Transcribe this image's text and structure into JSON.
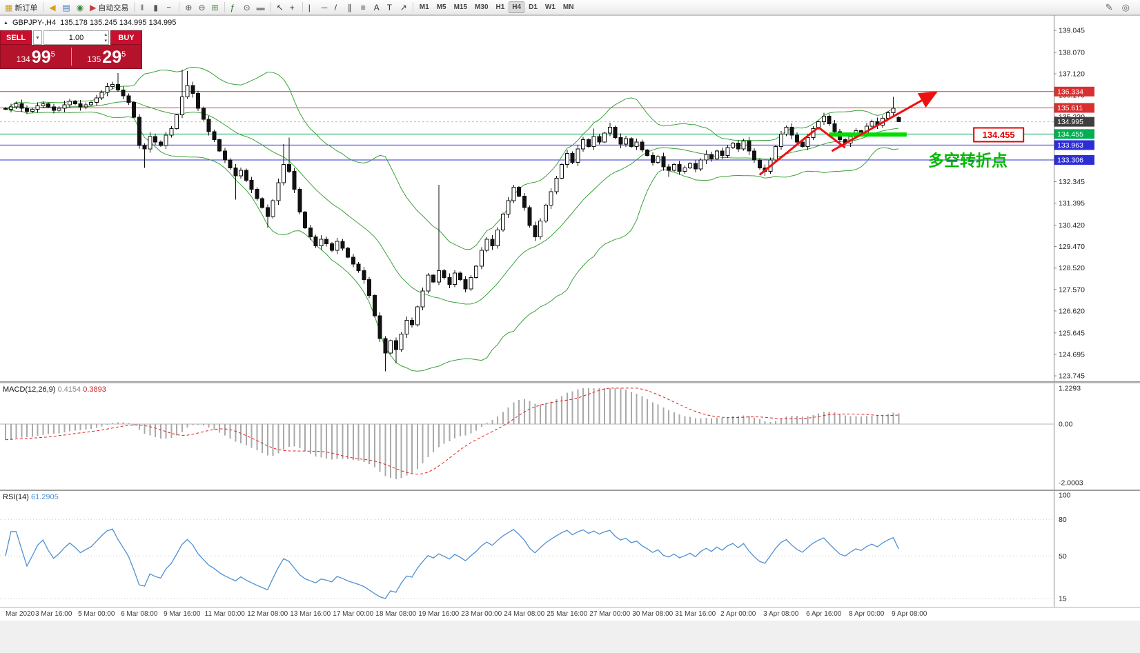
{
  "toolbar": {
    "items": [
      {
        "type": "button",
        "name": "new-order-button",
        "glyph": "▦",
        "color": "#caa02c",
        "label": "新订单"
      },
      {
        "type": "sep"
      },
      {
        "type": "button",
        "name": "alerts-icon",
        "glyph": "◀",
        "color": "#d4a017"
      },
      {
        "type": "button",
        "name": "profiles-icon",
        "glyph": "▤",
        "color": "#4b7bb5"
      },
      {
        "type": "button",
        "name": "support-icon",
        "glyph": "◉",
        "color": "#3a8a3a"
      },
      {
        "type": "button",
        "name": "auto-trading-button",
        "glyph": "▶",
        "color": "#c23b3b",
        "label": "自动交易"
      },
      {
        "type": "sep"
      },
      {
        "type": "button",
        "name": "chart-bars-icon",
        "glyph": "‖",
        "color": "#555555"
      },
      {
        "type": "button",
        "name": "chart-candles-icon",
        "glyph": "▮",
        "color": "#555555"
      },
      {
        "type": "button",
        "name": "chart-line-icon",
        "glyph": "~",
        "color": "#555555"
      },
      {
        "type": "sep"
      },
      {
        "type": "button",
        "name": "zoom-in-button",
        "glyph": "⊕",
        "color": "#555555"
      },
      {
        "type": "button",
        "name": "zoom-out-button",
        "glyph": "⊖",
        "color": "#555555"
      },
      {
        "type": "button",
        "name": "tile-windows-icon",
        "glyph": "⊞",
        "color": "#3a8a3a"
      },
      {
        "type": "sep"
      },
      {
        "type": "button",
        "name": "indicators-button",
        "glyph": "ƒ",
        "color": "#2f6f2f"
      },
      {
        "type": "button",
        "name": "periods-button",
        "glyph": "⊙",
        "color": "#555555"
      },
      {
        "type": "button",
        "name": "templates-button",
        "glyph": "▬",
        "color": "#888888"
      },
      {
        "type": "sep"
      },
      {
        "type": "button",
        "name": "cursor-button",
        "glyph": "↖",
        "color": "#333333"
      },
      {
        "type": "button",
        "name": "crosshair-button",
        "glyph": "+",
        "color": "#333333"
      },
      {
        "type": "sep"
      },
      {
        "type": "button",
        "name": "vertical-line-button",
        "glyph": "|",
        "color": "#333333"
      },
      {
        "type": "button",
        "name": "horizontal-line-button",
        "glyph": "─",
        "color": "#333333"
      },
      {
        "type": "button",
        "name": "trendline-button",
        "glyph": "/",
        "color": "#333333"
      },
      {
        "type": "button",
        "name": "channel-button",
        "glyph": "∥",
        "color": "#333333"
      },
      {
        "type": "button",
        "name": "fibonacci-button",
        "glyph": "≡",
        "color": "#333333"
      },
      {
        "type": "button",
        "name": "text-button",
        "glyph": "A",
        "color": "#333333"
      },
      {
        "type": "button",
        "name": "label-button",
        "glyph": "T",
        "color": "#333333"
      },
      {
        "type": "button",
        "name": "arrows-button",
        "glyph": "↗",
        "color": "#333333"
      },
      {
        "type": "sep"
      }
    ],
    "timeframes": [
      "M1",
      "M5",
      "M15",
      "M30",
      "H1",
      "H4",
      "D1",
      "W1",
      "MN"
    ],
    "active_timeframe": "H4",
    "right_icons": [
      {
        "name": "edit-icon",
        "glyph": "✎"
      },
      {
        "name": "community-icon",
        "glyph": "◎"
      }
    ]
  },
  "symbol_bar": {
    "symbol": "GBPJPY-,H4",
    "quotes": "135.178 135.245 134.995 134.995"
  },
  "icons": {
    "collapse": "▲",
    "dropdown": "▾",
    "spin_up": "▴",
    "spin_down": "▾"
  },
  "trade_panel": {
    "sell_label": "SELL",
    "buy_label": "BUY",
    "volume": "1.00",
    "sell_price": {
      "prefix": "134",
      "big": "99",
      "sup": "5"
    },
    "buy_price": {
      "prefix": "135",
      "big": "29",
      "sup": "5"
    }
  },
  "macd": {
    "name": "MACD(12,26,9)",
    "v1": "0.4154",
    "v2": "0.3893",
    "scale": [
      {
        "v": 1.2293,
        "t": "1.2293"
      },
      {
        "v": 0,
        "t": "0.00"
      },
      {
        "v": -2.0003,
        "t": "-2.0003"
      }
    ]
  },
  "rsi": {
    "name": "RSI(14)",
    "v": "61.2905",
    "scale": [
      {
        "v": 100,
        "t": "100"
      },
      {
        "v": 80,
        "t": "80"
      },
      {
        "v": 50,
        "t": "50"
      },
      {
        "v": 15,
        "t": "15"
      }
    ],
    "levels": [
      80,
      50,
      15
    ]
  },
  "time_axis": [
    {
      "text": "Mar 2020",
      "bar": 0
    },
    {
      "text": "3 Mar 16:00",
      "bar": 9
    },
    {
      "text": "5 Mar 00:00",
      "bar": 17
    },
    {
      "text": "6 Mar 08:00",
      "bar": 25
    },
    {
      "text": "9 Mar 16:00",
      "bar": 33
    },
    {
      "text": "11 Mar 00:00",
      "bar": 41
    },
    {
      "text": "12 Mar 08:00",
      "bar": 49
    },
    {
      "text": "13 Mar 16:00",
      "bar": 57
    },
    {
      "text": "17 Mar 00:00",
      "bar": 65
    },
    {
      "text": "18 Mar 08:00",
      "bar": 73
    },
    {
      "text": "19 Mar 16:00",
      "bar": 81
    },
    {
      "text": "23 Mar 00:00",
      "bar": 89
    },
    {
      "text": "24 Mar 08:00",
      "bar": 97
    },
    {
      "text": "25 Mar 16:00",
      "bar": 105
    },
    {
      "text": "27 Mar 00:00",
      "bar": 113
    },
    {
      "text": "30 Mar 08:00",
      "bar": 121
    },
    {
      "text": "31 Mar 16:00",
      "bar": 129
    },
    {
      "text": "2 Apr 00:00",
      "bar": 137
    },
    {
      "text": "3 Apr 08:00",
      "bar": 145
    },
    {
      "text": "6 Apr 16:00",
      "bar": 153
    },
    {
      "text": "8 Apr 00:00",
      "bar": 161
    },
    {
      "text": "9 Apr 08:00",
      "bar": 169
    }
  ],
  "chart_data": {
    "type": "candlestick",
    "symbol": "GBPJPY-",
    "timeframe": "H4",
    "last_ohlc": {
      "open": 135.178,
      "high": 135.245,
      "low": 134.995,
      "close": 134.995
    },
    "first_open": 135.6,
    "closes": [
      135.55,
      135.65,
      135.8,
      135.6,
      135.45,
      135.55,
      135.7,
      135.8,
      135.65,
      135.5,
      135.6,
      135.75,
      135.9,
      135.8,
      135.65,
      135.75,
      135.85,
      136.05,
      136.3,
      136.55,
      136.65,
      136.4,
      136.15,
      135.85,
      135.2,
      133.95,
      133.8,
      134.35,
      134.1,
      133.95,
      134.4,
      134.7,
      135.3,
      136.1,
      136.6,
      136.25,
      135.6,
      135.1,
      134.55,
      134.2,
      133.7,
      133.3,
      132.95,
      132.6,
      132.85,
      132.4,
      132.0,
      131.6,
      131.2,
      130.8,
      131.5,
      132.3,
      133.1,
      132.8,
      132.0,
      131.0,
      130.3,
      129.9,
      129.5,
      129.8,
      129.6,
      129.3,
      129.7,
      129.4,
      129.0,
      128.7,
      128.4,
      128.0,
      127.3,
      126.4,
      125.4,
      124.75,
      125.3,
      124.9,
      125.6,
      126.2,
      126.0,
      126.8,
      127.5,
      128.2,
      127.9,
      128.4,
      128.1,
      127.8,
      128.3,
      128.0,
      127.6,
      128.1,
      128.6,
      129.3,
      129.8,
      129.5,
      130.2,
      130.9,
      131.5,
      132.1,
      131.7,
      131.2,
      130.4,
      129.9,
      130.6,
      131.3,
      131.9,
      132.5,
      133.1,
      133.6,
      133.2,
      133.8,
      134.2,
      133.9,
      134.35,
      134.1,
      134.5,
      134.75,
      134.3,
      134.0,
      134.25,
      133.9,
      134.1,
      133.75,
      133.5,
      133.2,
      133.45,
      133.0,
      132.85,
      133.1,
      132.8,
      132.95,
      133.15,
      132.9,
      133.3,
      133.55,
      133.35,
      133.7,
      133.5,
      133.85,
      134.05,
      133.8,
      134.15,
      133.7,
      133.3,
      132.95,
      132.8,
      133.3,
      133.9,
      134.45,
      134.75,
      134.4,
      134.1,
      133.9,
      134.3,
      134.7,
      135.0,
      135.25,
      134.9,
      134.55,
      134.2,
      134.05,
      134.35,
      134.6,
      134.5,
      134.8,
      135.0,
      134.85,
      135.15,
      135.4,
      135.6,
      134.995
    ],
    "wick_overrides": {
      "21": {
        "h": 137.15
      },
      "26": {
        "l": 132.95
      },
      "33": {
        "h": 137.3
      },
      "34": {
        "h": 137.25
      },
      "43": {
        "l": 131.55
      },
      "49": {
        "l": 130.3
      },
      "52": {
        "h": 134.0
      },
      "53": {
        "h": 134.3
      },
      "71": {
        "l": 123.95
      },
      "73": {
        "l": 124.3
      },
      "81": {
        "h": 132.2
      },
      "110": {
        "h": 134.7
      },
      "113": {
        "h": 134.95
      },
      "124": {
        "l": 132.55
      },
      "142": {
        "l": 132.6
      },
      "153": {
        "h": 135.4
      },
      "166": {
        "h": 136.1
      },
      "167": {
        "o": 135.178,
        "h": 135.245,
        "l": 134.995
      }
    },
    "macd_seed": {
      "ema12": 135.9,
      "ema26": 136.45
    },
    "bollinger": {
      "period": 20,
      "deviation": 2,
      "color": "#3aa03a"
    },
    "levels": [
      {
        "price": 136.334,
        "color": "#e03030"
      },
      {
        "price": 135.611,
        "color": "#e03030"
      },
      {
        "price": 134.455,
        "color": "#00a650"
      },
      {
        "price": 133.963,
        "color": "#2d2dd8"
      },
      {
        "price": 133.306,
        "color": "#2d2dd8"
      }
    ],
    "current_price": 134.995,
    "price_markers": [
      {
        "price": 136.334,
        "bg": "#d83030"
      },
      {
        "price": 135.611,
        "bg": "#d83030"
      },
      {
        "price": 134.995,
        "bg": "#3f3f3f"
      },
      {
        "price": 134.455,
        "bg": "#00b050"
      },
      {
        "price": 133.963,
        "bg": "#2d2dd8"
      },
      {
        "price": 133.306,
        "bg": "#2d2dd8"
      }
    ],
    "y_ticks": [
      139.045,
      138.07,
      137.12,
      136.17,
      135.22,
      132.345,
      131.395,
      130.42,
      129.47,
      128.52,
      127.57,
      126.62,
      125.645,
      124.695,
      123.745
    ]
  },
  "annotations": {
    "arrow_color": "#ee1111",
    "arrows": [
      {
        "from": [
          141,
          132.65
        ],
        "to": [
          152,
          134.75
        ],
        "head": false
      },
      {
        "from": [
          152,
          134.75
        ],
        "to": [
          157,
          133.85
        ],
        "head": false
      },
      {
        "from": [
          154.5,
          133.7
        ],
        "to": [
          174,
          136.3
        ],
        "head": true
      }
    ],
    "support_bar": {
      "from_bar": 154,
      "to_bar": 168.5,
      "price": 134.43,
      "color": "#00dd00"
    },
    "turning_point": {
      "text": "多空转折点",
      "bar": 172.5,
      "price": 133.05,
      "color": "#00b800"
    },
    "price_flag": {
      "text": "134.455",
      "bar": 185.7,
      "price": 134.42,
      "color": "#e00000"
    }
  }
}
